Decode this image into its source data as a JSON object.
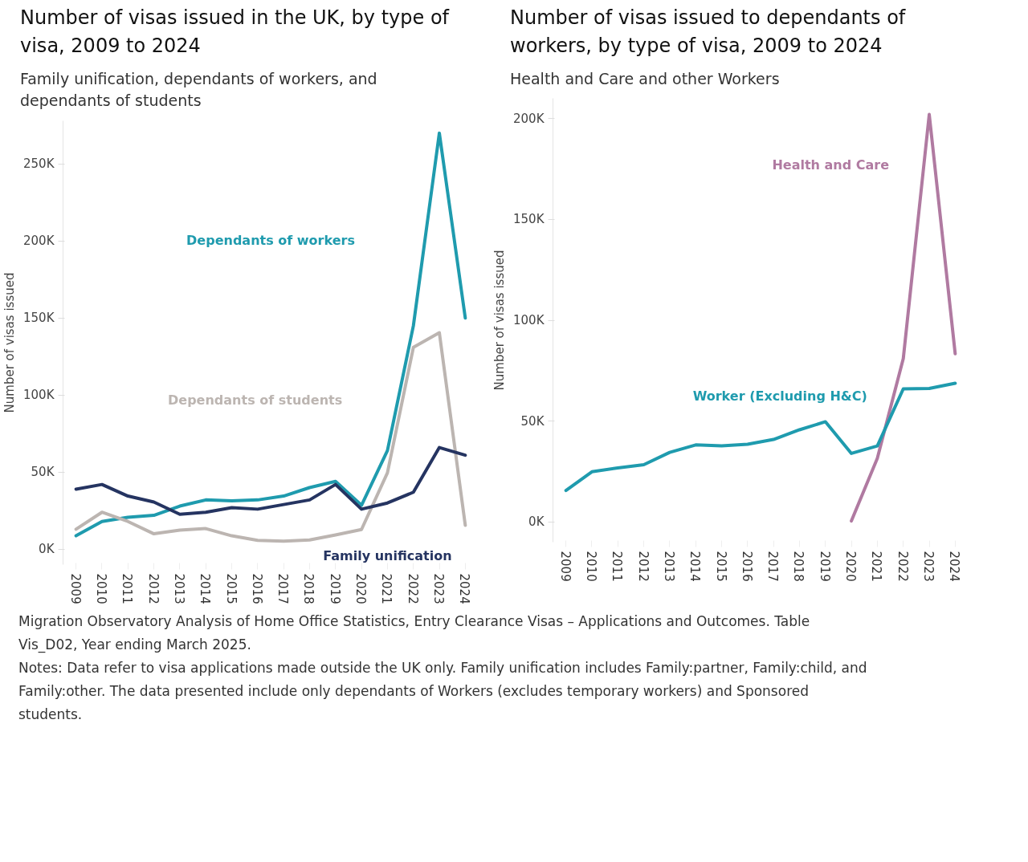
{
  "chart_data": [
    {
      "type": "line",
      "title": "Number of visas issued in the UK, by type of visa, 2009 to 2024",
      "subtitle": "Family unification, dependants of workers, and dependants of students",
      "ylabel": "Number of visas issued",
      "categories": [
        "2009",
        "2010",
        "2011",
        "2012",
        "2013",
        "2014",
        "2015",
        "2016",
        "2017",
        "2018",
        "2019",
        "2020",
        "2021",
        "2022",
        "2023",
        "2024"
      ],
      "series": [
        {
          "name": "Dependants of workers",
          "color": "#1f9bae",
          "values": [
            8700,
            18000,
            20700,
            22000,
            28000,
            32000,
            31400,
            32000,
            34500,
            40000,
            44000,
            28500,
            64000,
            145000,
            270000,
            150000
          ]
        },
        {
          "name": "Dependants of students",
          "color": "#bcb5b1",
          "values": [
            13000,
            24000,
            18000,
            10000,
            12400,
            13400,
            8700,
            5800,
            5200,
            6000,
            9300,
            12800,
            49600,
            131000,
            140500,
            15500
          ]
        },
        {
          "name": "Family unification",
          "color": "#253461",
          "values": [
            39000,
            42000,
            34500,
            30600,
            22700,
            24000,
            27000,
            26000,
            29000,
            32000,
            42000,
            26000,
            30000,
            37000,
            66000,
            61000
          ]
        }
      ],
      "ylim": [
        -10000,
        278000
      ],
      "yticks": [
        {
          "value": 0,
          "label": "0K"
        },
        {
          "value": 50000,
          "label": "50K"
        },
        {
          "value": 100000,
          "label": "100K"
        },
        {
          "value": 150000,
          "label": "150K"
        },
        {
          "value": 200000,
          "label": "200K"
        },
        {
          "value": 250000,
          "label": "250K"
        }
      ],
      "annotations": [
        "Migration Observatory Analysis of Home Office Statistics, Entry Clearance Visas – Applications and Outcomes. Table Vis_D02, Year ending March 2025.",
        "Notes: Data refer to visa applications made outside the UK only. Family unification includes Family:partner, Family:child, and Family:other. The data presented include only dependants of Workers (excludes temporary workers) and Sponsored students."
      ]
    },
    {
      "type": "line",
      "title": "Number of visas issued to dependants of workers, by type of visa, 2009 to 2024",
      "subtitle": "Health and Care and other Workers",
      "ylabel": "Number of visas issued",
      "categories": [
        "2009",
        "2010",
        "2011",
        "2012",
        "2013",
        "2014",
        "2015",
        "2016",
        "2017",
        "2018",
        "2019",
        "2020",
        "2021",
        "2022",
        "2023",
        "2024"
      ],
      "series": [
        {
          "name": "Health and Care",
          "color": "#b07aa1",
          "values": [
            null,
            null,
            null,
            null,
            null,
            null,
            null,
            null,
            null,
            null,
            null,
            500,
            31600,
            81000,
            202000,
            83400
          ]
        },
        {
          "name": "Worker (Excluding H&C)",
          "color": "#1f9bae",
          "values": [
            15600,
            24900,
            26800,
            28400,
            34500,
            38200,
            37700,
            38500,
            40900,
            45700,
            49700,
            34000,
            37700,
            66000,
            66200,
            68800
          ]
        }
      ],
      "ylim": [
        -10000,
        210000
      ],
      "yticks": [
        {
          "value": 0,
          "label": "0K"
        },
        {
          "value": 50000,
          "label": "50K"
        },
        {
          "value": 100000,
          "label": "100K"
        },
        {
          "value": 150000,
          "label": "150K"
        },
        {
          "value": 200000,
          "label": "200K"
        }
      ]
    }
  ]
}
